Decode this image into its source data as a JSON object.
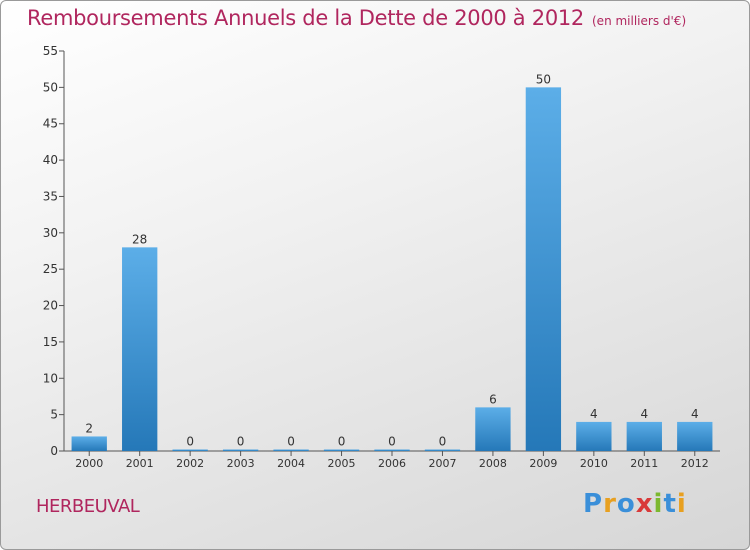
{
  "header": {
    "title": "Remboursements Annuels de la Dette de 2000 à 2012",
    "unit": "(en milliers d'€)"
  },
  "footer": {
    "commune": "HERBEUVAL",
    "logo_letters": [
      "P",
      "r",
      "o",
      "x",
      "i",
      "t",
      "i"
    ],
    "logo_colors": [
      "#3a8fd9",
      "#e8a020",
      "#3a8fd9",
      "#d93a3a",
      "#7cb82f",
      "#3a8fd9",
      "#e8a020"
    ]
  },
  "chart_data": {
    "type": "bar",
    "title": "Remboursements Annuels de la Dette de 2000 à 2012",
    "subtitle": "(en milliers d'€)",
    "xlabel": "",
    "ylabel": "",
    "categories": [
      "2000",
      "2001",
      "2002",
      "2003",
      "2004",
      "2005",
      "2006",
      "2007",
      "2008",
      "2009",
      "2010",
      "2011",
      "2012"
    ],
    "values": [
      2,
      28,
      0,
      0,
      0,
      0,
      0,
      0,
      6,
      50,
      4,
      4,
      4
    ],
    "data_labels": [
      "2",
      "28",
      "0",
      "0",
      "0",
      "0",
      "0",
      "0",
      "6",
      "50",
      "4",
      "4",
      "4"
    ],
    "ylim": [
      0,
      55
    ],
    "yticks": [
      0,
      5,
      10,
      15,
      20,
      25,
      30,
      35,
      40,
      45,
      50,
      55
    ],
    "grid": false,
    "colors": {
      "bar_light": "#5caee8",
      "bar_dark": "#2578b8",
      "title": "#b0265e",
      "axis": "#555555"
    }
  }
}
